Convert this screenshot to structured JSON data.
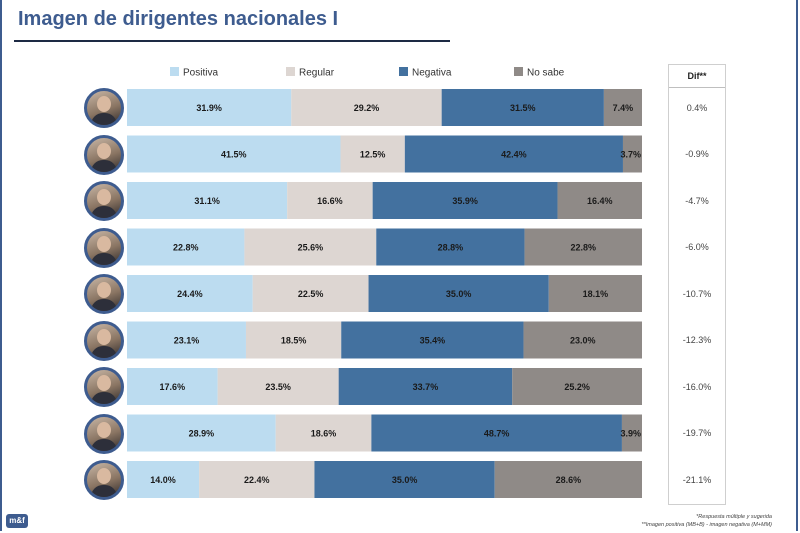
{
  "header": {
    "title": "Imagen de dirigentes nacionales I"
  },
  "chart_data": {
    "type": "bar",
    "orientation": "horizontal",
    "stacked": true,
    "series": [
      {
        "name": "Positiva",
        "color": "#bcdcf0",
        "values": [
          31.9,
          41.5,
          31.1,
          22.8,
          24.4,
          23.1,
          17.6,
          28.9,
          14.0
        ]
      },
      {
        "name": "Regular",
        "color": "#ddd6d2",
        "values": [
          29.2,
          12.5,
          16.6,
          25.6,
          22.5,
          18.5,
          23.5,
          18.6,
          22.4
        ]
      },
      {
        "name": "Negativa",
        "color": "#43719f",
        "values": [
          31.5,
          42.4,
          35.9,
          28.8,
          35.0,
          35.4,
          33.7,
          48.7,
          35.0
        ]
      },
      {
        "name": "No sabe",
        "color": "#8f8a87",
        "values": [
          7.4,
          3.7,
          16.4,
          22.8,
          18.1,
          23.0,
          25.2,
          3.9,
          28.6
        ]
      }
    ],
    "labels": [
      [
        "31.9%",
        "29.2%",
        "31.5%",
        "7.4%"
      ],
      [
        "41.5%",
        "12.5%",
        "42.4%",
        "3.7%"
      ],
      [
        "31.1%",
        "16.6%",
        "35.9%",
        "16.4%"
      ],
      [
        "22.8%",
        "25.6%",
        "28.8%",
        "22.8%"
      ],
      [
        "24.4%",
        "22.5%",
        "35.0%",
        "18.1%"
      ],
      [
        "23.1%",
        "18.5%",
        "35.4%",
        "23.0%"
      ],
      [
        "17.6%",
        "23.5%",
        "33.7%",
        "25.2%"
      ],
      [
        "28.9%",
        "18.6%",
        "48.7%",
        "3.9%"
      ],
      [
        "14.0%",
        "22.4%",
        "35.0%",
        "28.6%"
      ]
    ],
    "legend_position": "top",
    "dif": {
      "header": "Dif**",
      "values": [
        "0.4%",
        "-0.9%",
        "-4.7%",
        "-6.0%",
        "-10.7%",
        "-12.3%",
        "-16.0%",
        "-19.7%",
        "-21.1%"
      ]
    }
  },
  "footnotes": {
    "line1": "*Respuesta múltiple y sugerida",
    "line2": "**Imagen positiva (MB+B) - imagen negativa (M+MM)"
  },
  "logo": {
    "text": "m&f"
  }
}
